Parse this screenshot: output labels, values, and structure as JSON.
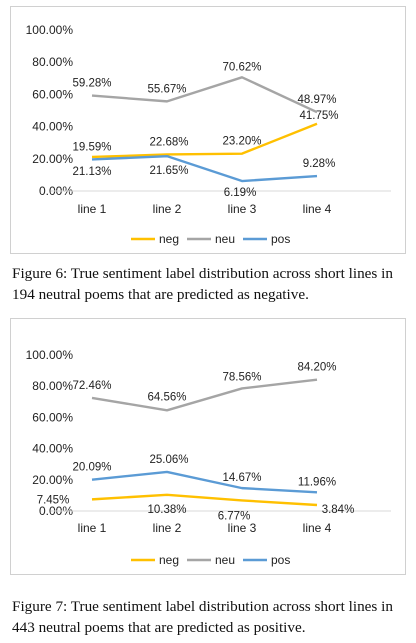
{
  "chart_data": [
    {
      "type": "line",
      "categories": [
        "line 1",
        "line 2",
        "line 3",
        "line 4"
      ],
      "ylim": [
        0,
        100
      ],
      "yticks": [
        0,
        20,
        40,
        60,
        80,
        100
      ],
      "ytick_labels": [
        "0.00%",
        "20.00%",
        "40.00%",
        "60.00%",
        "80.00%",
        "100.00%"
      ],
      "grid": false,
      "legend_position": "bottom",
      "series": [
        {
          "name": "neg",
          "color": "#FFC000",
          "values": [
            21.13,
            22.68,
            23.2,
            41.75
          ],
          "labels": [
            "21.13%",
            "22.68%",
            "23.20%",
            "41.75%"
          ]
        },
        {
          "name": "neu",
          "color": "#A5A5A5",
          "values": [
            59.28,
            55.67,
            70.62,
            48.97
          ],
          "labels": [
            "59.28%",
            "55.67%",
            "70.62%",
            "48.97%"
          ]
        },
        {
          "name": "pos",
          "color": "#5B9BD5",
          "values": [
            19.59,
            21.65,
            6.19,
            9.28
          ],
          "labels": [
            "19.59%",
            "21.65%",
            "6.19%",
            "9.28%"
          ]
        }
      ]
    },
    {
      "type": "line",
      "categories": [
        "line 1",
        "line 2",
        "line 3",
        "line 4"
      ],
      "ylim": [
        0,
        100
      ],
      "yticks": [
        0,
        20,
        40,
        60,
        80,
        100
      ],
      "ytick_labels": [
        "0.00%",
        "20.00%",
        "40.00%",
        "60.00%",
        "80.00%",
        "100.00%"
      ],
      "grid": false,
      "legend_position": "bottom",
      "series": [
        {
          "name": "neg",
          "color": "#FFC000",
          "values": [
            7.45,
            10.38,
            6.77,
            3.84
          ],
          "labels": [
            "7.45%",
            "10.38%",
            "6.77%",
            "3.84%"
          ]
        },
        {
          "name": "neu",
          "color": "#A5A5A5",
          "values": [
            72.46,
            64.56,
            78.56,
            84.2
          ],
          "labels": [
            "72.46%",
            "64.56%",
            "78.56%",
            "84.20%"
          ]
        },
        {
          "name": "pos",
          "color": "#5B9BD5",
          "values": [
            20.09,
            25.06,
            14.67,
            11.96
          ],
          "labels": [
            "20.09%",
            "25.06%",
            "14.67%",
            "11.96%"
          ]
        }
      ]
    }
  ],
  "captions": {
    "figure6": "Figure 6: True sentiment label distribution across short lines in 194 neutral poems that are predicted as negative.",
    "figure7": "Figure 7: True sentiment label distribution across short lines in 443 neutral poems that are predicted as positive."
  }
}
